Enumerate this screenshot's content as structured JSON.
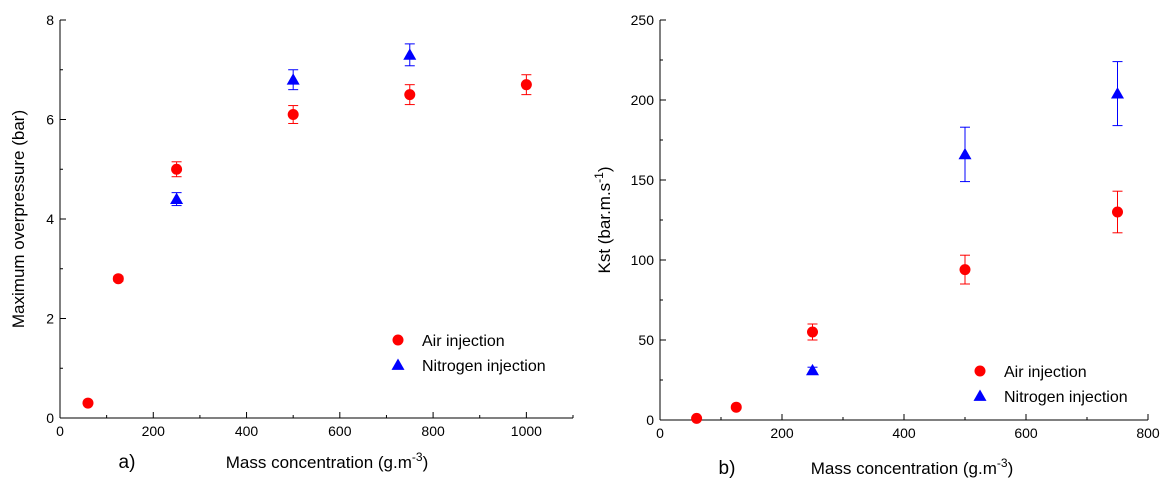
{
  "chart_data": [
    {
      "type": "scatter",
      "panel_label": "a)",
      "xlabel": "Mass concentration (g.m",
      "xlabel_sup": "-3",
      "xlabel_tail": ")",
      "ylabel": "Maximum overpressure (bar)",
      "ylabel_sup": "",
      "ylabel_tail": "",
      "xlim": [
        0,
        1100
      ],
      "ylim": [
        0,
        8
      ],
      "xticks": [
        0,
        200,
        400,
        600,
        800,
        1000
      ],
      "yticks": [
        0,
        2,
        4,
        6,
        8
      ],
      "legend_position": "bottom-right",
      "series": [
        {
          "name": "Air injection",
          "marker": "circle",
          "color": "#ff0000",
          "x": [
            60,
            125,
            250,
            500,
            750,
            1000
          ],
          "y": [
            0.3,
            2.8,
            5.0,
            6.1,
            6.5,
            6.7
          ],
          "err": [
            0,
            0.05,
            0.15,
            0.18,
            0.2,
            0.2
          ]
        },
        {
          "name": "Nitrogen injection",
          "marker": "triangle",
          "color": "#0000ff",
          "x": [
            250,
            500,
            750
          ],
          "y": [
            4.4,
            6.8,
            7.3
          ],
          "err": [
            0.13,
            0.2,
            0.22
          ]
        }
      ]
    },
    {
      "type": "scatter",
      "panel_label": "b)",
      "xlabel": "Mass concentration (g.m",
      "xlabel_sup": "-3",
      "xlabel_tail": ")",
      "ylabel": "Kst (bar.m.s",
      "ylabel_sup": "-1",
      "ylabel_tail": ")",
      "xlim": [
        0,
        800
      ],
      "ylim": [
        0,
        250
      ],
      "xticks": [
        0,
        200,
        400,
        600,
        800
      ],
      "yticks": [
        0,
        50,
        100,
        150,
        200,
        250
      ],
      "legend_position": "bottom-right",
      "series": [
        {
          "name": "Air injection",
          "marker": "circle",
          "color": "#ff0000",
          "x": [
            60,
            125,
            250,
            500,
            750
          ],
          "y": [
            1,
            8,
            55,
            94,
            130
          ],
          "err": [
            0,
            0,
            5,
            9,
            13
          ]
        },
        {
          "name": "Nitrogen injection",
          "marker": "triangle",
          "color": "#0000ff",
          "x": [
            250,
            500,
            750
          ],
          "y": [
            31,
            166,
            204
          ],
          "err": [
            2,
            17,
            20
          ]
        }
      ]
    }
  ]
}
